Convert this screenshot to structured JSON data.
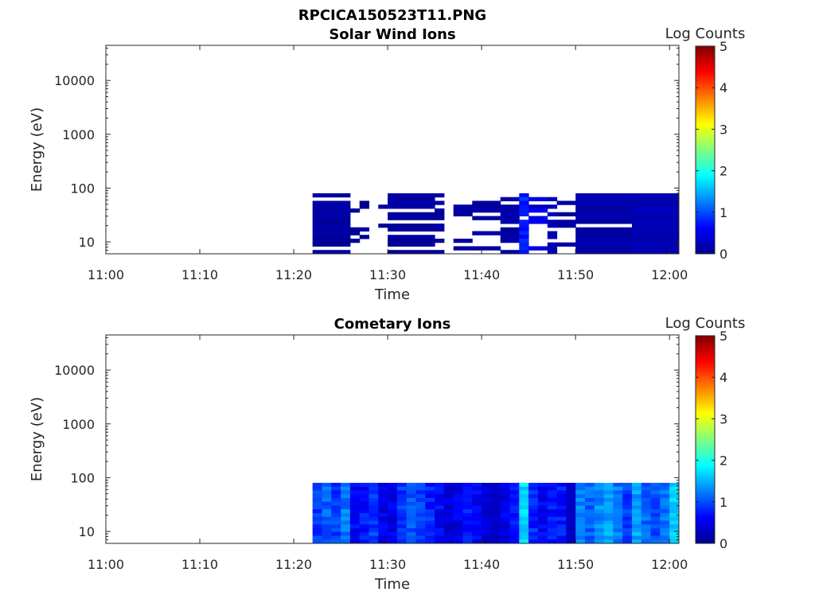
{
  "figure_title": "RPCICA150523T11.PNG",
  "colors": {
    "axis": "#262626",
    "colormap": [
      "#00008f",
      "#0000ff",
      "#0080ff",
      "#00ffff",
      "#80ff80",
      "#ffff00",
      "#ff8000",
      "#ff0000",
      "#800000"
    ]
  },
  "chart_data": [
    {
      "type": "heatmap",
      "title": "Solar Wind Ions",
      "xlabel": "Time",
      "ylabel": "Energy (eV)",
      "y_scale": "log",
      "xlim": [
        "11:00",
        "12:01"
      ],
      "ylim": [
        6,
        45000
      ],
      "x_ticks": [
        "11:00",
        "11:10",
        "11:20",
        "11:30",
        "11:40",
        "11:50",
        "12:00"
      ],
      "y_ticks": [
        "10",
        "100",
        "1000",
        "10000"
      ],
      "colorbar": {
        "label": "Log Counts",
        "range": [
          0,
          5
        ],
        "ticks": [
          "0",
          "1",
          "2",
          "3",
          "4",
          "5"
        ],
        "colormap": "jet"
      },
      "energy_range_eV": [
        6,
        80
      ],
      "segments": [
        {
          "start": "11:22",
          "end": "11:26",
          "log_counts": 0.1,
          "coverage": 0.8
        },
        {
          "start": "11:26",
          "end": "11:27",
          "log_counts": 0.05,
          "coverage": 0.25
        },
        {
          "start": "11:27",
          "end": "11:28",
          "log_counts": 0.05,
          "coverage": 0.2
        },
        {
          "start": "11:29",
          "end": "11:30",
          "log_counts": 0.05,
          "coverage": 0.15
        },
        {
          "start": "11:30",
          "end": "11:35",
          "log_counts": 0.1,
          "coverage": 0.75
        },
        {
          "start": "11:35",
          "end": "11:36",
          "log_counts": 0.1,
          "coverage": 0.4
        },
        {
          "start": "11:37",
          "end": "11:39",
          "log_counts": 0.1,
          "coverage": 0.45
        },
        {
          "start": "11:39",
          "end": "11:42",
          "log_counts": 0.1,
          "coverage": 0.35
        },
        {
          "start": "11:42",
          "end": "11:44",
          "log_counts": 0.15,
          "coverage": 0.5
        },
        {
          "start": "11:44",
          "end": "11:45",
          "log_counts": 0.8,
          "coverage": 0.85
        },
        {
          "start": "11:45",
          "end": "11:47",
          "log_counts": 0.4,
          "coverage": 0.55
        },
        {
          "start": "11:47",
          "end": "11:48",
          "log_counts": 0.2,
          "coverage": 0.6
        },
        {
          "start": "11:48",
          "end": "11:50",
          "log_counts": 0.1,
          "coverage": 0.3
        },
        {
          "start": "11:50",
          "end": "11:56",
          "log_counts": 0.15,
          "coverage": 0.95
        },
        {
          "start": "11:56",
          "end": "12:01",
          "log_counts": 0.2,
          "coverage": 0.95
        }
      ]
    },
    {
      "type": "heatmap",
      "title": "Cometary Ions",
      "xlabel": "Time",
      "ylabel": "Energy (eV)",
      "y_scale": "log",
      "xlim": [
        "11:00",
        "12:01"
      ],
      "ylim": [
        6,
        45000
      ],
      "x_ticks": [
        "11:00",
        "11:10",
        "11:20",
        "11:30",
        "11:40",
        "11:50",
        "12:00"
      ],
      "y_ticks": [
        "10",
        "100",
        "1000",
        "10000"
      ],
      "colorbar": {
        "label": "Log Counts",
        "range": [
          0,
          5
        ],
        "ticks": [
          "0",
          "1",
          "2",
          "3",
          "4",
          "5"
        ],
        "colormap": "jet"
      },
      "energy_range_eV": [
        6,
        80
      ],
      "segments": [
        {
          "start": "11:22",
          "end": "11:23",
          "log_counts": 0.9,
          "coverage": 1
        },
        {
          "start": "11:23",
          "end": "11:24",
          "log_counts": 1.1,
          "coverage": 1
        },
        {
          "start": "11:24",
          "end": "11:25",
          "log_counts": 0.9,
          "coverage": 1
        },
        {
          "start": "11:25",
          "end": "11:26",
          "log_counts": 1.2,
          "coverage": 1
        },
        {
          "start": "11:26",
          "end": "11:27",
          "log_counts": 0.6,
          "coverage": 1
        },
        {
          "start": "11:27",
          "end": "11:28",
          "log_counts": 0.7,
          "coverage": 1
        },
        {
          "start": "11:28",
          "end": "11:29",
          "log_counts": 0.9,
          "coverage": 1
        },
        {
          "start": "11:29",
          "end": "11:30",
          "log_counts": 0.5,
          "coverage": 1
        },
        {
          "start": "11:30",
          "end": "11:31",
          "log_counts": 0.5,
          "coverage": 1
        },
        {
          "start": "11:31",
          "end": "11:32",
          "log_counts": 0.9,
          "coverage": 1
        },
        {
          "start": "11:32",
          "end": "11:33",
          "log_counts": 1.0,
          "coverage": 1
        },
        {
          "start": "11:33",
          "end": "11:34",
          "log_counts": 0.9,
          "coverage": 1
        },
        {
          "start": "11:34",
          "end": "11:35",
          "log_counts": 0.8,
          "coverage": 1
        },
        {
          "start": "11:35",
          "end": "11:36",
          "log_counts": 0.6,
          "coverage": 1
        },
        {
          "start": "11:36",
          "end": "11:37",
          "log_counts": 0.4,
          "coverage": 1
        },
        {
          "start": "11:37",
          "end": "11:38",
          "log_counts": 0.5,
          "coverage": 1
        },
        {
          "start": "11:38",
          "end": "11:39",
          "log_counts": 0.7,
          "coverage": 1
        },
        {
          "start": "11:39",
          "end": "11:40",
          "log_counts": 0.6,
          "coverage": 1
        },
        {
          "start": "11:40",
          "end": "11:41",
          "log_counts": 0.4,
          "coverage": 1
        },
        {
          "start": "11:41",
          "end": "11:42",
          "log_counts": 0.3,
          "coverage": 1
        },
        {
          "start": "11:42",
          "end": "11:43",
          "log_counts": 0.5,
          "coverage": 1
        },
        {
          "start": "11:43",
          "end": "11:44",
          "log_counts": 0.7,
          "coverage": 1
        },
        {
          "start": "11:44",
          "end": "11:45",
          "log_counts": 1.7,
          "coverage": 1
        },
        {
          "start": "11:45",
          "end": "11:46",
          "log_counts": 0.8,
          "coverage": 1
        },
        {
          "start": "11:46",
          "end": "11:47",
          "log_counts": 0.6,
          "coverage": 1
        },
        {
          "start": "11:47",
          "end": "11:48",
          "log_counts": 0.7,
          "coverage": 1
        },
        {
          "start": "11:48",
          "end": "11:49",
          "log_counts": 0.7,
          "coverage": 1
        },
        {
          "start": "11:49",
          "end": "11:50",
          "log_counts": 0.3,
          "coverage": 1
        },
        {
          "start": "11:50",
          "end": "11:51",
          "log_counts": 1.2,
          "coverage": 1
        },
        {
          "start": "11:51",
          "end": "11:52",
          "log_counts": 1.1,
          "coverage": 1
        },
        {
          "start": "11:52",
          "end": "11:53",
          "log_counts": 1.3,
          "coverage": 1
        },
        {
          "start": "11:53",
          "end": "11:54",
          "log_counts": 1.4,
          "coverage": 1
        },
        {
          "start": "11:54",
          "end": "11:55",
          "log_counts": 1.2,
          "coverage": 1
        },
        {
          "start": "11:55",
          "end": "11:56",
          "log_counts": 0.9,
          "coverage": 1
        },
        {
          "start": "11:56",
          "end": "11:57",
          "log_counts": 1.4,
          "coverage": 1
        },
        {
          "start": "11:57",
          "end": "11:58",
          "log_counts": 1.1,
          "coverage": 1
        },
        {
          "start": "11:58",
          "end": "11:59",
          "log_counts": 1.0,
          "coverage": 1
        },
        {
          "start": "11:59",
          "end": "12:00",
          "log_counts": 1.2,
          "coverage": 1
        },
        {
          "start": "12:00",
          "end": "12:01",
          "log_counts": 1.6,
          "coverage": 1
        }
      ]
    }
  ]
}
